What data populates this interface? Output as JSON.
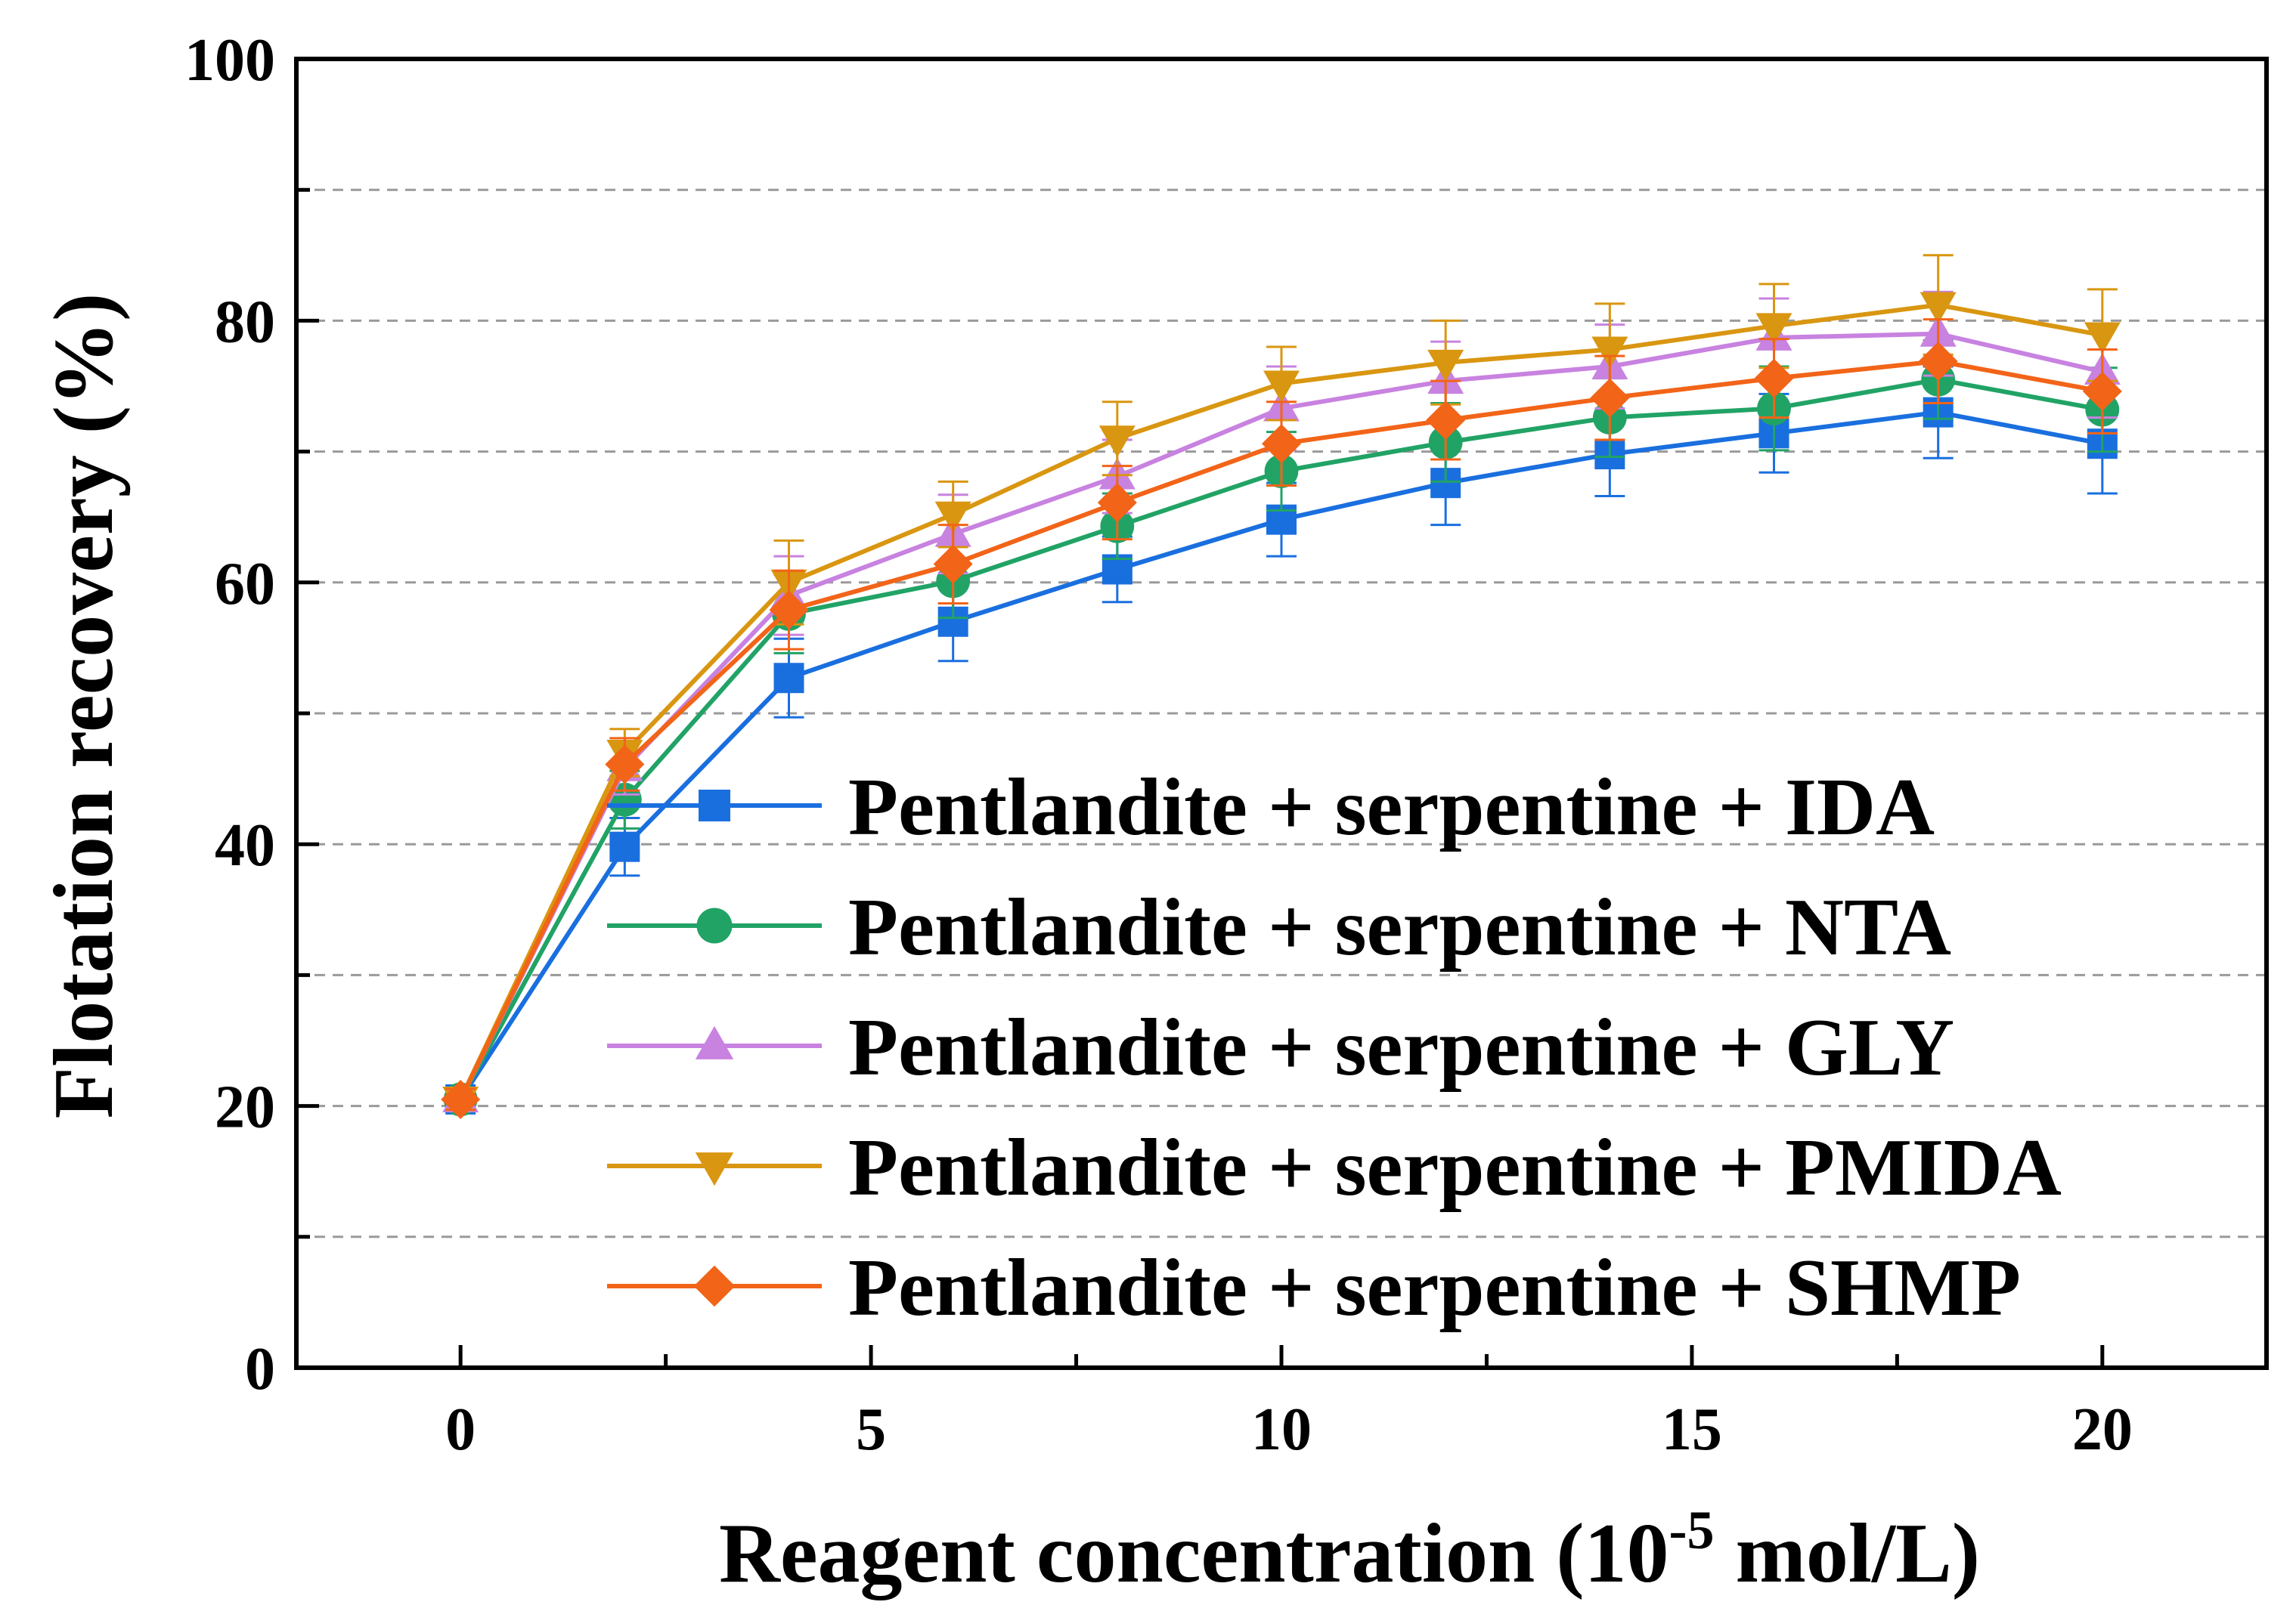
{
  "chart_data": {
    "type": "line",
    "title": "",
    "xlabel": "Reagent concentration (10",
    "xlabel_sup": "-5",
    "xlabel_tail": " mol/L)",
    "ylabel": "Flotation recovery (%)",
    "xlim": [
      -2,
      22
    ],
    "ylim": [
      0,
      100
    ],
    "xticks": [
      0,
      5,
      10,
      15,
      20
    ],
    "yticks": [
      0,
      20,
      40,
      60,
      80,
      100
    ],
    "x": [
      0,
      2,
      4,
      6,
      8,
      10,
      12,
      14,
      16,
      18,
      20
    ],
    "grid": "horizontal dashed",
    "legend_position": "lower-right",
    "series": [
      {
        "name": "Pentlandite + serpentine + IDA",
        "color": "#1a6fdf",
        "marker": "square",
        "values": [
          20.5,
          39.8,
          52.7,
          57.0,
          61.0,
          64.8,
          67.6,
          69.8,
          71.4,
          73.0,
          70.6
        ],
        "errors": [
          0.8,
          2.2,
          3.0,
          3.0,
          2.5,
          2.8,
          3.2,
          3.2,
          3.0,
          3.5,
          3.8
        ]
      },
      {
        "name": "Pentlandite + serpentine + NTA",
        "color": "#21a366",
        "marker": "circle",
        "values": [
          20.5,
          43.4,
          57.6,
          60.1,
          64.3,
          68.5,
          70.7,
          72.6,
          73.3,
          75.5,
          73.2
        ],
        "errors": [
          0.8,
          2.2,
          3.0,
          2.8,
          2.5,
          3.0,
          3.0,
          3.0,
          3.2,
          3.0,
          3.2
        ]
      },
      {
        "name": "Pentlandite + serpentine + GLY",
        "color": "#c882e0",
        "marker": "triangle-up",
        "values": [
          20.5,
          45.8,
          59.0,
          63.7,
          68.1,
          73.3,
          75.4,
          76.5,
          78.7,
          79.0,
          76.1
        ],
        "errors": [
          0.8,
          2.0,
          3.0,
          3.0,
          2.8,
          3.2,
          3.0,
          3.2,
          3.0,
          3.2,
          3.5
        ]
      },
      {
        "name": "Pentlandite + serpentine + PMIDA",
        "color": "#d99611",
        "marker": "triangle-down",
        "values": [
          20.5,
          47.0,
          60.0,
          65.2,
          71.0,
          75.2,
          76.8,
          77.8,
          79.6,
          81.2,
          78.9
        ],
        "errors": [
          0.8,
          1.8,
          3.2,
          2.5,
          2.8,
          2.8,
          3.2,
          3.5,
          3.2,
          3.8,
          3.5
        ]
      },
      {
        "name": "Pentlandite + serpentine + SHMP",
        "color": "#f26418",
        "marker": "diamond",
        "values": [
          20.5,
          46.1,
          57.9,
          61.4,
          66.1,
          70.6,
          72.4,
          74.1,
          75.6,
          76.9,
          74.6
        ],
        "errors": [
          0.8,
          2.0,
          3.0,
          3.0,
          2.8,
          3.2,
          3.0,
          3.2,
          3.0,
          3.2,
          3.2
        ]
      }
    ]
  }
}
